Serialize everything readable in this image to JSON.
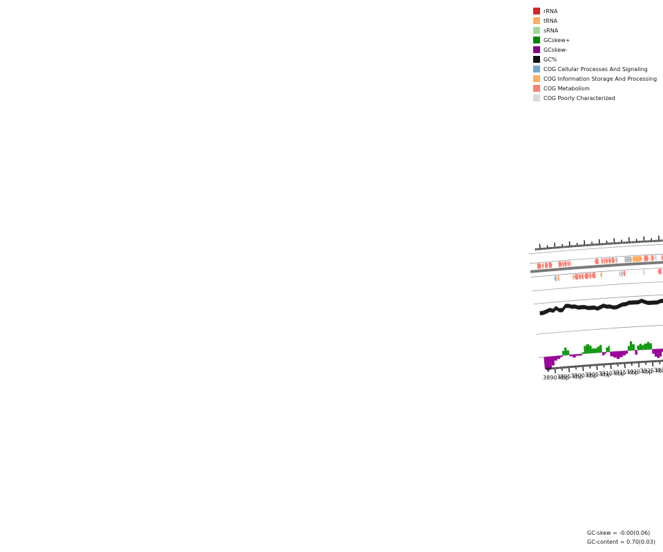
{
  "legend": [
    {
      "label": "rRNA",
      "color": "#d62728"
    },
    {
      "label": "tRNA",
      "color": "#fdae61"
    },
    {
      "label": "sRNA",
      "color": "#a1d99b"
    },
    {
      "label": "GCskew+",
      "color": "#008800"
    },
    {
      "label": "GCskew-",
      "color": "#880088"
    },
    {
      "label": "GC%",
      "color": "#111111"
    },
    {
      "label": "COG Cellular Processes And Signaling",
      "color": "#74a9cf"
    },
    {
      "label": "COG Information Storage And Processing",
      "color": "#fdae61"
    },
    {
      "label": "COG Metabolism",
      "color": "#fa8072"
    },
    {
      "label": "COG Poorly Characterized",
      "color": "#d9d9d9"
    }
  ],
  "position_axis": {
    "unit": "kbp",
    "labels": [
      "3890 kbp",
      "3895 kbp",
      "3900 kbp",
      "3905 kbp",
      "3910 kbp",
      "3915 kbp",
      "3920 kbp",
      "3925 kbp",
      "3930 kbp",
      "3935 kbp"
    ]
  },
  "stats": {
    "gc_skew": "GC-skew = -0.00(0.06)",
    "gc_content": "GC-content = 0.70(0.03)"
  },
  "colors": {
    "metabolism": "#fa8072",
    "info_storage": "#fdae61",
    "cellular": "#74a9cf",
    "poorly": "#bdbdbd",
    "backbone": "#7a7a7a",
    "gc_content": "#1a1a1a",
    "skew_pos": "#119911",
    "skew_neg": "#990099",
    "ring_line": "#999999"
  }
}
